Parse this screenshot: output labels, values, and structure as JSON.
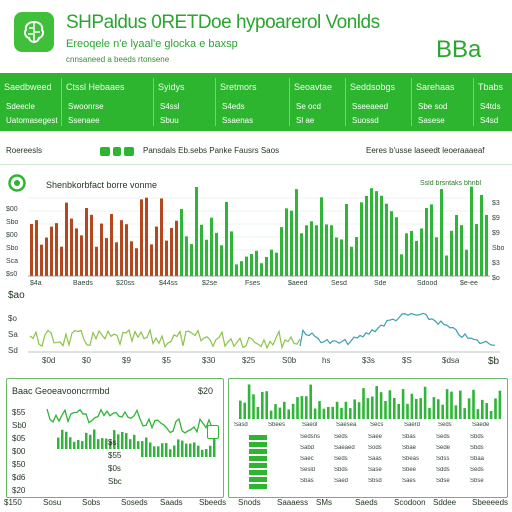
{
  "header": {
    "title": "SHPaldus 0RETDoe hypoarerol Vonlds",
    "subtitle": "Ereoqele n'e lyaal'e glocka e baxsp",
    "tagline": "cnnsaneed a beeds rtonsene",
    "brand": "BBa",
    "logo_icon": "brain-icon"
  },
  "band": {
    "columns": [
      {
        "label": "Saedbweed",
        "values": [
          "Sdeecle",
          "Uatomasegest"
        ]
      },
      {
        "label": "Ctssl Hebaaes",
        "values": [
          "Swoonrse",
          "Ssenaee"
        ]
      },
      {
        "label": "Syidys",
        "values": [
          "S4ssl",
          "Sbuu"
        ]
      },
      {
        "label": "Sretmors",
        "values": [
          "S4eds",
          "Ssaenas"
        ]
      },
      {
        "label": "Seoavtae",
        "values": [
          "Se ocd",
          "Sl ae"
        ]
      },
      {
        "label": "Seddsobgs",
        "values": [
          "Sseeaeed",
          "Suossd"
        ]
      },
      {
        "label": "Sarehaas",
        "values": [
          "Sbe sod",
          "Sasese"
        ]
      },
      {
        "label": "Tbabs",
        "values": [
          "S4tds",
          "S4sd"
        ]
      }
    ]
  },
  "toolbar": {
    "left_label": "Roereesls",
    "filters": "Pansdals Eb.sebs Panke Fausrs Saos",
    "right_label": "Eeres b'usse laseedt leoeraaaeaf"
  },
  "main_chart": {
    "title": "Shenbkorbfact borre vonme",
    "right_title": "Ssld brsntaks bhnbl",
    "y_ticks": [
      "$00",
      "Sbo",
      "$00",
      "Sbo",
      "Sca",
      "$s0"
    ],
    "right_y_ticks": [
      "$3",
      "$9",
      "$9",
      "Sbo",
      "$3",
      "$o"
    ],
    "x_ticks": [
      "$4a",
      "Baeds",
      "$20ss",
      "$44ss",
      "$2se",
      "Fses",
      "$aeed",
      "Sesd",
      "Sde",
      "Sdood",
      "$e-ee"
    ],
    "left_marker": "$ao"
  },
  "lower_chart": {
    "y_ticks": [
      "$o",
      "Sa",
      "Sd"
    ],
    "x_ticks": [
      "$0d",
      "$0",
      "$9",
      "$5",
      "$30",
      "$25",
      "S0b",
      "hs",
      "$3s",
      "$S",
      "$dsa"
    ],
    "right_label": "$b",
    "accent_colors": [
      "#8bc34a",
      "#3a9fb0"
    ]
  },
  "panel_left": {
    "title": "Baac Geoeavooncrrmbd",
    "badge": "$20",
    "y_ticks": [
      "$55",
      "Sb0",
      "$05",
      "$00",
      "$50",
      "$d6",
      "$20"
    ],
    "mid_labels": [
      "$s",
      "$55",
      "$0s",
      "Sbc"
    ]
  },
  "panel_right": {
    "col_headers": [
      "Sasd",
      "Sbees",
      "Saeol",
      "Saesea",
      "Secs",
      "Saerd",
      "Seds",
      "Saede"
    ],
    "rows": [
      [
        "Sedsns",
        "Seds",
        "Saee",
        "Sbas",
        "Seds",
        "Sbds"
      ],
      [
        "Sabd",
        "Saeaed",
        "Sods",
        "Sbae",
        "Sede",
        "Sbds"
      ],
      [
        "Saec",
        "Seds",
        "Saas",
        "Sbeas",
        "Sdss",
        "Sbaa"
      ],
      [
        "Sesld",
        "Sbds",
        "Sase",
        "Sbee",
        "Sdds",
        "Seds"
      ],
      [
        "Sbas",
        "Saed",
        "Sbsd",
        "Saes",
        "Sdse",
        "Sbse"
      ]
    ]
  },
  "footer": {
    "items": [
      "$150",
      "Sosu",
      "Sobs",
      "Soseds",
      "Saads",
      "Sbeeds",
      "Snods",
      "Saaaess",
      "SMs",
      "Saeds",
      "Scodoon",
      "Sddee",
      "Sbeeeeds"
    ]
  },
  "colors": {
    "primary": "#2eb52f",
    "bar_red": "#b5471e",
    "bar_green": "#2fb537",
    "line_lime": "#8bc34a",
    "line_teal": "#3a9fb0"
  }
}
